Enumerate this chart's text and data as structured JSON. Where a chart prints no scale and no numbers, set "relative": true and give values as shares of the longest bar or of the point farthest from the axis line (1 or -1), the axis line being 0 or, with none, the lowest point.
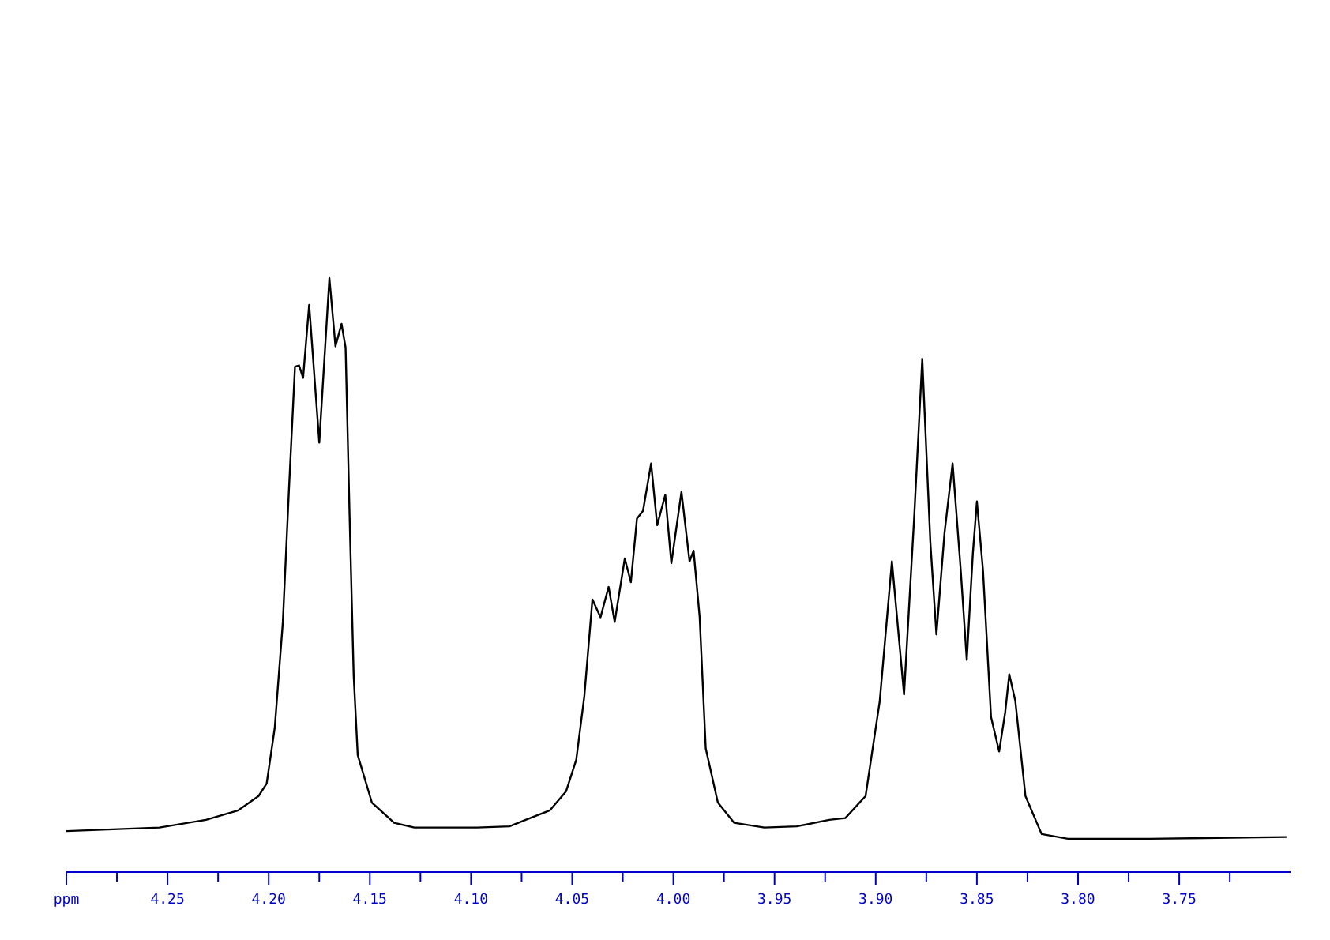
{
  "chart_data": {
    "type": "line",
    "relative": true,
    "grid": false,
    "legend": false,
    "marker": "none",
    "line_style": "solid",
    "xlim": [
      4.3,
      3.695
    ],
    "xticks": [
      {
        "value": 4.3,
        "label": "ppm"
      },
      {
        "value": 4.275,
        "label": null
      },
      4.25,
      {
        "value": 4.225,
        "label": null
      },
      {
        "value": 4.2,
        "label": "4.20"
      },
      {
        "value": 4.175,
        "label": null
      },
      4.15,
      {
        "value": 4.125,
        "label": null
      },
      {
        "value": 4.1,
        "label": "4.10"
      },
      {
        "value": 4.075,
        "label": null
      },
      4.05,
      {
        "value": 4.025,
        "label": null
      },
      {
        "value": 4.0,
        "label": "4.00"
      },
      {
        "value": 3.975,
        "label": null
      },
      3.95,
      {
        "value": 3.925,
        "label": null
      },
      {
        "value": 3.9,
        "label": "3.90"
      },
      {
        "value": 3.875,
        "label": null
      },
      3.85,
      {
        "value": 3.825,
        "label": null
      },
      {
        "value": 3.8,
        "label": "3.80"
      },
      {
        "value": 3.775,
        "label": null
      },
      3.75,
      {
        "value": 3.725,
        "label": null
      }
    ],
    "series": [
      {
        "color": "#000000",
        "x": [
          4.3,
          4.254,
          4.231,
          4.215,
          4.205,
          4.201,
          4.197,
          4.193,
          4.19,
          4.187,
          4.185,
          4.183,
          4.18,
          4.175,
          4.17,
          4.167,
          4.164,
          4.162,
          4.16,
          4.158,
          4.156,
          4.149,
          4.138,
          4.128,
          4.097,
          4.081,
          4.073,
          4.061,
          4.053,
          4.048,
          4.044,
          4.04,
          4.036,
          4.032,
          4.029,
          4.024,
          4.021,
          4.018,
          4.015,
          4.011,
          4.008,
          4.004,
          4.001,
          3.996,
          3.992,
          3.99,
          3.987,
          3.984,
          3.978,
          3.97,
          3.955,
          3.939,
          3.923,
          3.915,
          3.905,
          3.898,
          3.892,
          3.886,
          3.881,
          3.877,
          3.873,
          3.87,
          3.866,
          3.862,
          3.858,
          3.855,
          3.852,
          3.85,
          3.847,
          3.843,
          3.839,
          3.836,
          3.834,
          3.831,
          3.826,
          3.818,
          3.805,
          3.765,
          3.697
        ],
        "values": [
          0.069,
          0.075,
          0.088,
          0.104,
          0.128,
          0.149,
          0.243,
          0.421,
          0.643,
          0.851,
          0.853,
          0.832,
          0.955,
          0.723,
          1.0,
          0.885,
          0.923,
          0.883,
          0.597,
          0.331,
          0.197,
          0.117,
          0.083,
          0.075,
          0.075,
          0.077,
          0.088,
          0.104,
          0.136,
          0.189,
          0.296,
          0.459,
          0.429,
          0.48,
          0.421,
          0.528,
          0.488,
          0.595,
          0.608,
          0.688,
          0.584,
          0.635,
          0.52,
          0.64,
          0.523,
          0.541,
          0.429,
          0.208,
          0.117,
          0.083,
          0.075,
          0.077,
          0.088,
          0.091,
          0.128,
          0.288,
          0.523,
          0.299,
          0.597,
          0.864,
          0.555,
          0.4,
          0.571,
          0.688,
          0.509,
          0.357,
          0.536,
          0.624,
          0.509,
          0.261,
          0.203,
          0.269,
          0.333,
          0.288,
          0.128,
          0.064,
          0.056,
          0.056,
          0.059
        ]
      }
    ]
  }
}
